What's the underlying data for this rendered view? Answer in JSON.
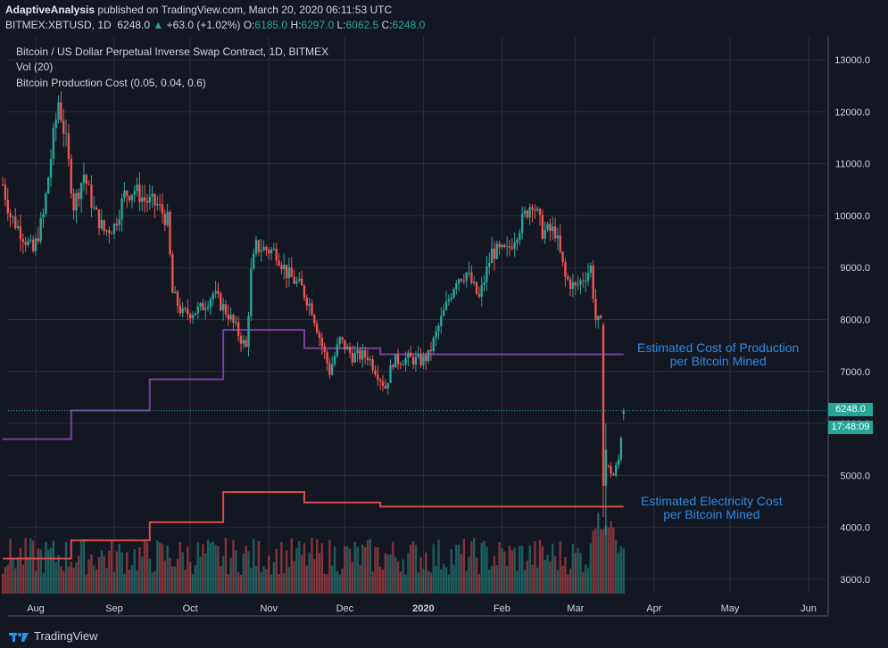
{
  "header": {
    "author": "AdaptiveAnalysis",
    "published_text": "published on TradingView.com, March 20, 2020 06:11:53 UTC",
    "symbol": "BITMEX:XBTUSD, 1D",
    "last": "6248.0",
    "change": "+63.0 (+1.02%)",
    "o_label": "O:",
    "o_value": "6185.0",
    "h_label": "H:",
    "h_value": "6297.0",
    "l_label": "L:",
    "l_value": "6062.5",
    "c_label": "C:",
    "c_value": "6248.0",
    "up_arrow": "▲"
  },
  "legend": {
    "title": "Bitcoin / US Dollar Perpetual Inverse Swap Contract, 1D, BITMEX",
    "vol": "Vol (20)",
    "indicator": "Bitcoin Production Cost (0.05, 0.04, 0.6)"
  },
  "annotations": {
    "production_line1": "Estimated Cost of Production",
    "production_line2": "per Bitcoin Mined",
    "electricity_line1": "Estimated Electricity Cost",
    "electricity_line2": "per Bitcoin Mined"
  },
  "price_tags": {
    "last_price": "6248.0",
    "countdown": "17:48:09"
  },
  "footer": {
    "brand": "TradingView",
    "logo_icon": "tradingview-logo-icon"
  },
  "colors": {
    "background": "#131722",
    "grid": "#2a2e39",
    "up": "#26a69a",
    "down": "#ef5350",
    "production_line": "#7b3fa0",
    "electricity_line": "#d84b4b",
    "annotation": "#2d8ae6"
  },
  "chart_data": {
    "type": "candlestick",
    "title": "Bitcoin / US Dollar Perpetual Inverse Swap Contract, 1D, BITMEX",
    "y_ticks": [
      "13000.0",
      "12000.0",
      "11000.0",
      "10000.0",
      "9000.0",
      "8000.0",
      "7000.0",
      "6000.0",
      "5000.0",
      "4000.0",
      "3000.0"
    ],
    "y_tick_values": [
      13000,
      12000,
      11000,
      10000,
      9000,
      8000,
      7000,
      6000,
      5000,
      4000,
      3000
    ],
    "x_ticks": [
      "Aug",
      "Sep",
      "Oct",
      "Nov",
      "Dec",
      "2020",
      "Feb",
      "Mar",
      "Apr",
      "May",
      "Jun"
    ],
    "x_tick_dates": [
      "2019-08-01",
      "2019-09-01",
      "2019-10-01",
      "2019-11-01",
      "2019-12-01",
      "2020-01-01",
      "2020-02-01",
      "2020-03-01",
      "2020-04-01",
      "2020-05-01",
      "2020-06-01"
    ],
    "x_range": [
      "2019-07-19",
      "2020-06-15"
    ],
    "ylim": [
      2750,
      13500
    ],
    "price_path": [
      [
        "2019-07-19",
        10600
      ],
      [
        "2019-07-22",
        10000
      ],
      [
        "2019-07-26",
        9700
      ],
      [
        "2019-07-31",
        9300
      ],
      [
        "2019-08-04",
        10000
      ],
      [
        "2019-08-08",
        11500
      ],
      [
        "2019-08-10",
        12200
      ],
      [
        "2019-08-13",
        11400
      ],
      [
        "2019-08-16",
        10200
      ],
      [
        "2019-08-20",
        10800
      ],
      [
        "2019-08-24",
        10100
      ],
      [
        "2019-08-28",
        9700
      ],
      [
        "2019-09-01",
        9800
      ],
      [
        "2019-09-05",
        10400
      ],
      [
        "2019-09-09",
        10500
      ],
      [
        "2019-09-13",
        10300
      ],
      [
        "2019-09-18",
        10200
      ],
      [
        "2019-09-22",
        9900
      ],
      [
        "2019-09-24",
        8500
      ],
      [
        "2019-09-28",
        8100
      ],
      [
        "2019-10-05",
        8200
      ],
      [
        "2019-10-10",
        8500
      ],
      [
        "2019-10-16",
        8100
      ],
      [
        "2019-10-23",
        7450
      ],
      [
        "2019-10-25",
        8900
      ],
      [
        "2019-10-27",
        9400
      ],
      [
        "2019-11-04",
        9300
      ],
      [
        "2019-11-08",
        8900
      ],
      [
        "2019-11-14",
        8600
      ],
      [
        "2019-11-18",
        8200
      ],
      [
        "2019-11-22",
        7500
      ],
      [
        "2019-11-25",
        7000
      ],
      [
        "2019-11-29",
        7600
      ],
      [
        "2019-12-04",
        7300
      ],
      [
        "2019-12-10",
        7300
      ],
      [
        "2019-12-17",
        6700
      ],
      [
        "2019-12-20",
        7200
      ],
      [
        "2019-12-26",
        7250
      ],
      [
        "2019-12-31",
        7200
      ],
      [
        "2020-01-03",
        7300
      ],
      [
        "2020-01-08",
        8000
      ],
      [
        "2020-01-14",
        8800
      ],
      [
        "2020-01-18",
        8900
      ],
      [
        "2020-01-23",
        8400
      ],
      [
        "2020-01-28",
        9300
      ],
      [
        "2020-02-03",
        9300
      ],
      [
        "2020-02-09",
        9900
      ],
      [
        "2020-02-13",
        10300
      ],
      [
        "2020-02-17",
        9700
      ],
      [
        "2020-02-22",
        9700
      ],
      [
        "2020-02-26",
        8800
      ],
      [
        "2020-03-01",
        8600
      ],
      [
        "2020-03-07",
        9000
      ],
      [
        "2020-03-09",
        8000
      ],
      [
        "2020-03-11",
        7900
      ],
      [
        "2020-03-12",
        4800
      ],
      [
        "2020-03-13",
        5200
      ],
      [
        "2020-03-16",
        5000
      ],
      [
        "2020-03-18",
        5300
      ],
      [
        "2020-03-20",
        6248
      ]
    ],
    "volume_max_label": "",
    "indicator_lines": [
      {
        "name": "Estimated Cost of Production per Bitcoin Mined",
        "color": "#7b3fa0",
        "steps": [
          [
            "2019-07-19",
            5700
          ],
          [
            "2019-08-15",
            6250
          ],
          [
            "2019-09-15",
            6850
          ],
          [
            "2019-10-14",
            7800
          ],
          [
            "2019-11-15",
            7450
          ],
          [
            "2019-12-15",
            7330
          ],
          [
            "2020-03-20",
            7330
          ]
        ]
      },
      {
        "name": "Estimated Electricity Cost per Bitcoin Mined",
        "color": "#d84b4b",
        "steps": [
          [
            "2019-07-19",
            3400
          ],
          [
            "2019-08-15",
            3750
          ],
          [
            "2019-09-15",
            4100
          ],
          [
            "2019-10-14",
            4680
          ],
          [
            "2019-11-15",
            4480
          ],
          [
            "2019-12-15",
            4400
          ],
          [
            "2020-03-20",
            4400
          ]
        ]
      }
    ],
    "last_price": 6248.0,
    "last_price_line": true,
    "grid": true
  }
}
